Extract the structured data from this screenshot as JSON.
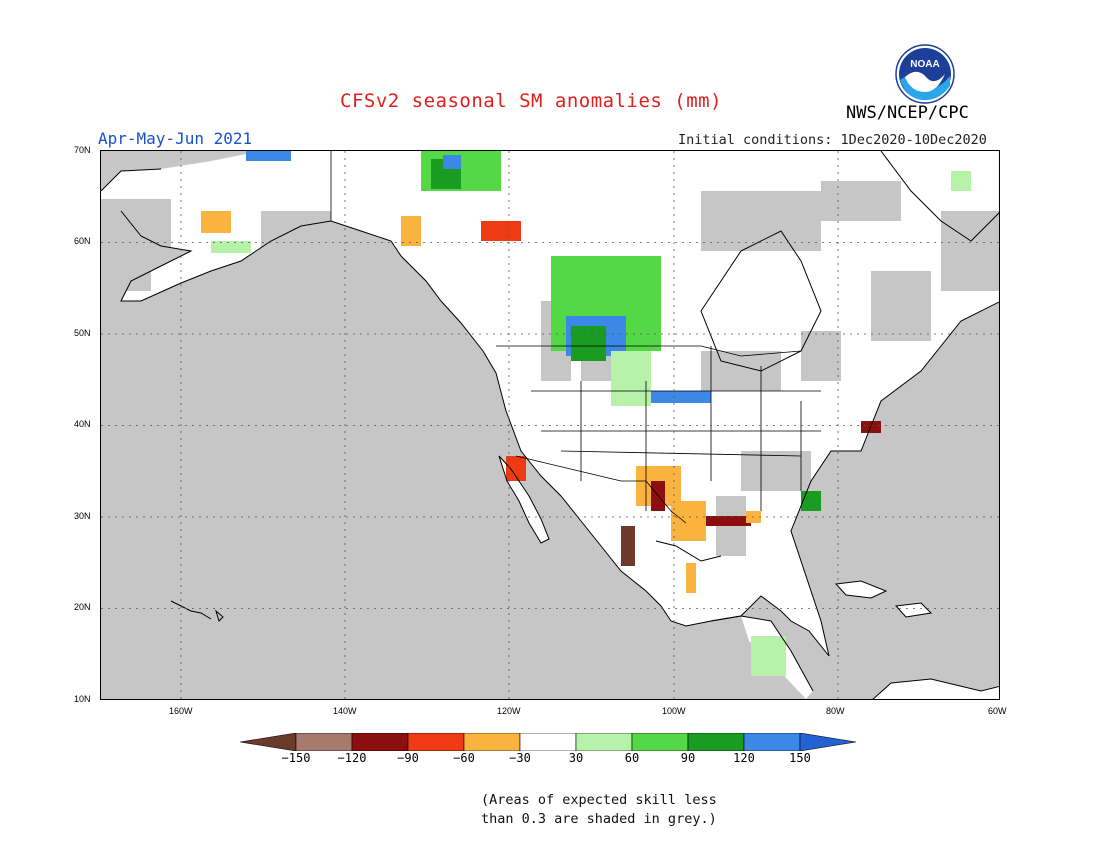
{
  "title": "CFSv2 seasonal SM anomalies (mm)",
  "agency": "NWS/NCEP/CPC",
  "logo_text": "NOAA",
  "valid_period": "Apr-May-Jun 2021",
  "initial_conditions": "Initial conditions: 1Dec2020-10Dec2020",
  "latitude_labels": [
    "70N",
    "60N",
    "50N",
    "40N",
    "30N",
    "20N",
    "10N"
  ],
  "longitude_labels": [
    "160W",
    "140W",
    "120W",
    "100W",
    "80W",
    "60W"
  ],
  "colorbar": {
    "labels": [
      "-150",
      "-120",
      "-90",
      "-60",
      "-30",
      "30",
      "60",
      "90",
      "120",
      "150"
    ],
    "colors": [
      "#6b3a2a",
      "#a57b6e",
      "#8b0f0f",
      "#ee3b14",
      "#f9b33e",
      "#ffffff",
      "#b6f2aa",
      "#55d845",
      "#1a9c22",
      "#3c88e6",
      "#2262d3"
    ]
  },
  "note_line1": "(Areas of expected skill less",
  "note_line2": "than 0.3 are shaded in grey.)",
  "map_colors": {
    "ocean": "#c6c6c6",
    "no_signal": "#ffffff",
    "coast": "#000000"
  }
}
